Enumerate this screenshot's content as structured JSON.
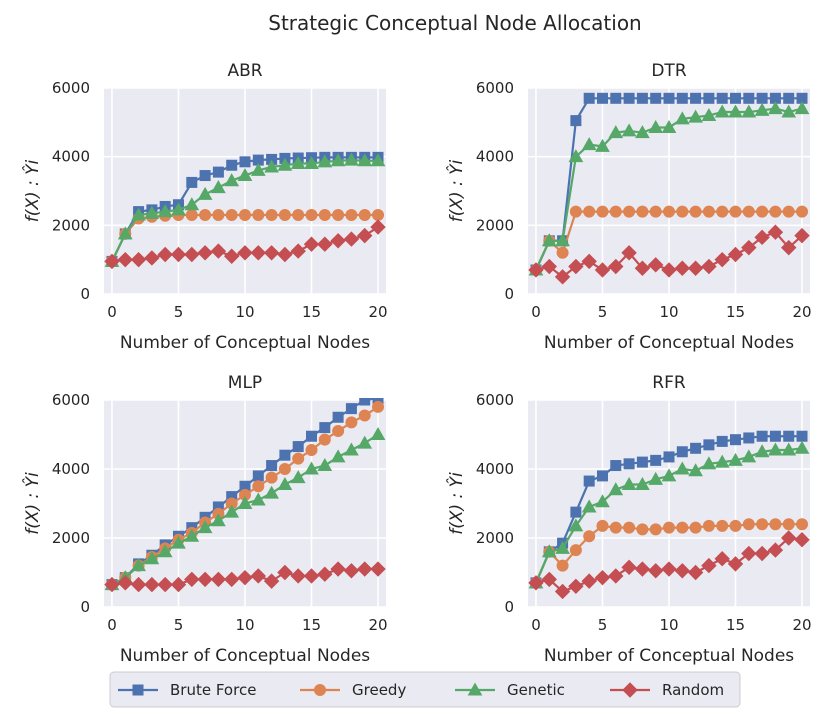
{
  "suptitle": "Strategic Conceptual Node Allocation",
  "colors": {
    "background": "#eaeaf2",
    "grid": "#ffffff",
    "brute_force": "#4c72b0",
    "greedy": "#dd8452",
    "genetic": "#55a868",
    "random": "#c44e52"
  },
  "legend": {
    "placement": "bottom-center",
    "entries": [
      {
        "label": "Brute Force",
        "marker": "square"
      },
      {
        "label": "Greedy",
        "marker": "circle"
      },
      {
        "label": "Genetic",
        "marker": "triangle"
      },
      {
        "label": "Random",
        "marker": "diamond"
      }
    ]
  },
  "chart_data": [
    {
      "type": "line",
      "title": "ABR",
      "xlabel": "Number of Conceptual Nodes",
      "ylabel": "f(X) : Ŷi",
      "xlim": [
        -0.6,
        20.6
      ],
      "ylim": [
        0,
        6000
      ],
      "xticks": [
        0,
        5,
        10,
        15,
        20
      ],
      "yticks": [
        0,
        2000,
        4000,
        6000
      ],
      "x": [
        0,
        1,
        2,
        3,
        4,
        5,
        6,
        7,
        8,
        9,
        10,
        11,
        12,
        13,
        14,
        15,
        16,
        17,
        18,
        19,
        20
      ],
      "series": [
        {
          "name": "Brute Force",
          "values": [
            950,
            1750,
            2400,
            2450,
            2550,
            2600,
            3250,
            3450,
            3550,
            3750,
            3850,
            3900,
            3920,
            3950,
            3960,
            3970,
            3980,
            3980,
            3980,
            3980,
            3980
          ]
        },
        {
          "name": "Greedy",
          "values": [
            950,
            1750,
            2200,
            2250,
            2280,
            2300,
            2300,
            2300,
            2300,
            2300,
            2300,
            2300,
            2300,
            2300,
            2300,
            2300,
            2300,
            2300,
            2300,
            2300,
            2300
          ]
        },
        {
          "name": "Genetic",
          "values": [
            950,
            1750,
            2300,
            2350,
            2400,
            2450,
            2600,
            2900,
            3100,
            3300,
            3450,
            3600,
            3700,
            3750,
            3800,
            3800,
            3850,
            3880,
            3900,
            3880,
            3880
          ]
        },
        {
          "name": "Random",
          "values": [
            950,
            1000,
            1000,
            1050,
            1150,
            1150,
            1150,
            1200,
            1250,
            1100,
            1200,
            1200,
            1200,
            1150,
            1250,
            1450,
            1450,
            1550,
            1600,
            1700,
            1950
          ]
        }
      ]
    },
    {
      "type": "line",
      "title": "DTR",
      "xlabel": "Number of Conceptual Nodes",
      "ylabel": "f(X) : Ŷi",
      "xlim": [
        -0.6,
        20.6
      ],
      "ylim": [
        0,
        6000
      ],
      "xticks": [
        0,
        5,
        10,
        15,
        20
      ],
      "yticks": [
        0,
        2000,
        4000,
        6000
      ],
      "x": [
        0,
        1,
        2,
        3,
        4,
        5,
        6,
        7,
        8,
        9,
        10,
        11,
        12,
        13,
        14,
        15,
        16,
        17,
        18,
        19,
        20
      ],
      "series": [
        {
          "name": "Brute Force",
          "values": [
            700,
            1550,
            1550,
            5050,
            5700,
            5700,
            5700,
            5700,
            5700,
            5700,
            5700,
            5700,
            5700,
            5700,
            5700,
            5700,
            5700,
            5700,
            5700,
            5700,
            5700
          ]
        },
        {
          "name": "Greedy",
          "values": [
            700,
            1550,
            1200,
            2400,
            2400,
            2400,
            2400,
            2400,
            2400,
            2400,
            2400,
            2400,
            2400,
            2400,
            2400,
            2400,
            2400,
            2400,
            2400,
            2400,
            2400
          ]
        },
        {
          "name": "Genetic",
          "values": [
            700,
            1550,
            1550,
            4000,
            4350,
            4300,
            4700,
            4750,
            4700,
            4850,
            4850,
            5100,
            5150,
            5200,
            5300,
            5300,
            5300,
            5350,
            5400,
            5300,
            5400
          ]
        },
        {
          "name": "Random",
          "values": [
            700,
            800,
            500,
            800,
            950,
            700,
            800,
            1200,
            750,
            850,
            700,
            750,
            750,
            800,
            1000,
            1150,
            1350,
            1650,
            1800,
            1350,
            1700
          ]
        }
      ]
    },
    {
      "type": "line",
      "title": "MLP",
      "xlabel": "Number of Conceptual Nodes",
      "ylabel": "f(X) : Ŷi",
      "xlim": [
        -0.6,
        20.6
      ],
      "ylim": [
        0,
        6000
      ],
      "xticks": [
        0,
        5,
        10,
        15,
        20
      ],
      "yticks": [
        0,
        2000,
        4000,
        6000
      ],
      "x": [
        0,
        1,
        2,
        3,
        4,
        5,
        6,
        7,
        8,
        9,
        10,
        11,
        12,
        13,
        14,
        15,
        16,
        17,
        18,
        19,
        20
      ],
      "series": [
        {
          "name": "Brute Force",
          "values": [
            650,
            850,
            1250,
            1500,
            1800,
            2050,
            2300,
            2600,
            2900,
            3200,
            3500,
            3800,
            4100,
            4400,
            4650,
            4950,
            5200,
            5500,
            5750,
            6000,
            6050
          ]
        },
        {
          "name": "Greedy",
          "values": [
            650,
            850,
            1200,
            1450,
            1700,
            1950,
            2150,
            2450,
            2700,
            3000,
            3250,
            3500,
            3750,
            4000,
            4300,
            4550,
            4850,
            5100,
            5350,
            5550,
            5800
          ]
        },
        {
          "name": "Genetic",
          "values": [
            650,
            850,
            1200,
            1400,
            1600,
            1850,
            2050,
            2300,
            2500,
            2750,
            3000,
            3100,
            3300,
            3550,
            3750,
            4000,
            4100,
            4350,
            4550,
            4750,
            5000
          ]
        },
        {
          "name": "Random",
          "values": [
            650,
            700,
            650,
            650,
            650,
            650,
            800,
            800,
            800,
            800,
            850,
            900,
            750,
            1000,
            900,
            900,
            950,
            1100,
            1050,
            1100,
            1100
          ]
        }
      ]
    },
    {
      "type": "line",
      "title": "RFR",
      "xlabel": "Number of Conceptual Nodes",
      "ylabel": "f(X) : Ŷi",
      "xlim": [
        -0.6,
        20.6
      ],
      "ylim": [
        0,
        6000
      ],
      "xticks": [
        0,
        5,
        10,
        15,
        20
      ],
      "yticks": [
        0,
        2000,
        4000,
        6000
      ],
      "x": [
        0,
        1,
        2,
        3,
        4,
        5,
        6,
        7,
        8,
        9,
        10,
        11,
        12,
        13,
        14,
        15,
        16,
        17,
        18,
        19,
        20
      ],
      "series": [
        {
          "name": "Brute Force",
          "values": [
            700,
            1600,
            1850,
            2750,
            3650,
            3800,
            4100,
            4150,
            4200,
            4250,
            4350,
            4500,
            4600,
            4700,
            4800,
            4850,
            4900,
            4950,
            4950,
            4950,
            4950
          ]
        },
        {
          "name": "Greedy",
          "values": [
            700,
            1600,
            1200,
            1650,
            2050,
            2350,
            2300,
            2300,
            2250,
            2250,
            2300,
            2300,
            2300,
            2350,
            2350,
            2350,
            2400,
            2400,
            2400,
            2400,
            2400
          ]
        },
        {
          "name": "Genetic",
          "values": [
            700,
            1600,
            1700,
            2350,
            2900,
            3050,
            3400,
            3550,
            3550,
            3700,
            3800,
            4000,
            3950,
            4150,
            4200,
            4250,
            4350,
            4500,
            4550,
            4550,
            4600
          ]
        },
        {
          "name": "Random",
          "values": [
            700,
            800,
            450,
            600,
            750,
            850,
            900,
            1150,
            1100,
            1050,
            1100,
            1050,
            1000,
            1200,
            1400,
            1250,
            1550,
            1550,
            1650,
            2000,
            1950
          ]
        }
      ]
    }
  ]
}
